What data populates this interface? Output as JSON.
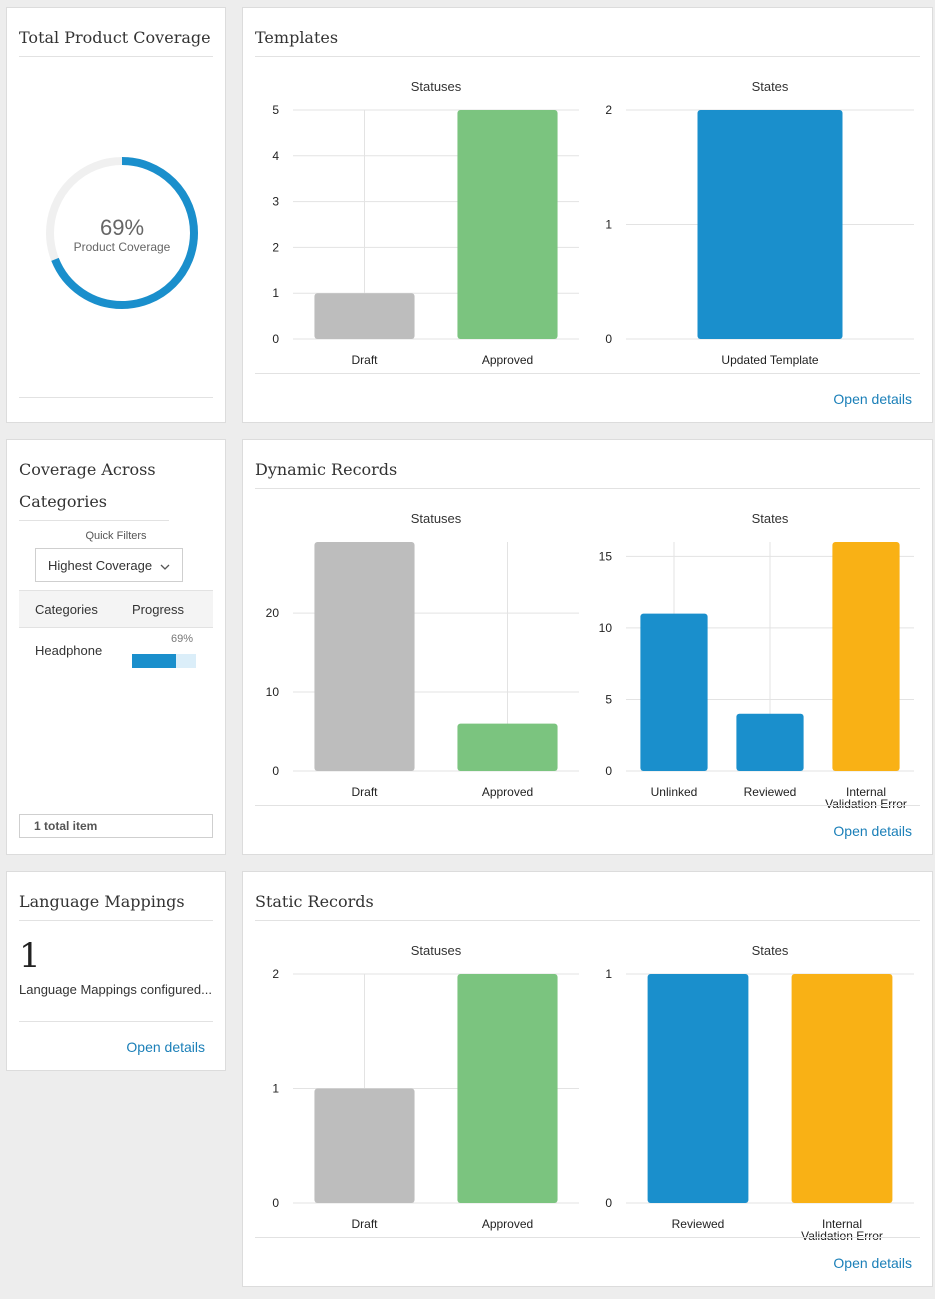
{
  "coverage": {
    "title": "Total Product Coverage",
    "percent": 69,
    "percent_label": "69%",
    "caption": "Product Coverage",
    "ring_color": "#1a8fcc"
  },
  "categories": {
    "title": "Coverage Across Categories",
    "quick_filters_label": "Quick Filters",
    "filter_value": "Highest Coverage",
    "columns": [
      "Categories",
      "Progress"
    ],
    "rows": [
      {
        "name": "Headphone",
        "progress": 69,
        "progress_label": "69%"
      }
    ],
    "total_label": "1 total item"
  },
  "language": {
    "title": "Language Mappings",
    "count": "1",
    "description": "Language Mappings configured...",
    "link": "Open details"
  },
  "templates": {
    "title": "Templates",
    "link": "Open details"
  },
  "dynamic": {
    "title": "Dynamic Records",
    "link": "Open details"
  },
  "static": {
    "title": "Static Records",
    "link": "Open details"
  },
  "colors": {
    "draft": "#bdbdbd",
    "approved": "#7bc47f",
    "blue": "#1a8fcc",
    "yellow": "#f9b115"
  },
  "chart_data": [
    {
      "id": "templates-statuses",
      "type": "bar",
      "title": "Statuses",
      "categories": [
        "Draft",
        "Approved"
      ],
      "values": [
        1,
        5
      ],
      "colors": [
        "#bdbdbd",
        "#7bc47f"
      ],
      "ylim": [
        0,
        5
      ],
      "yticks": [
        0,
        1,
        2,
        3,
        4,
        5
      ]
    },
    {
      "id": "templates-states",
      "type": "bar",
      "title": "States",
      "categories": [
        "Updated Template"
      ],
      "values": [
        2
      ],
      "colors": [
        "#1a8fcc"
      ],
      "ylim": [
        0,
        2
      ],
      "yticks": [
        0,
        1,
        2
      ]
    },
    {
      "id": "dynamic-statuses",
      "type": "bar",
      "title": "Statuses",
      "categories": [
        "Draft",
        "Approved"
      ],
      "values": [
        29,
        6
      ],
      "colors": [
        "#bdbdbd",
        "#7bc47f"
      ],
      "ylim": [
        0,
        29
      ],
      "yticks": [
        0,
        10,
        20
      ]
    },
    {
      "id": "dynamic-states",
      "type": "bar",
      "title": "States",
      "categories": [
        "Unlinked",
        "Reviewed",
        "Internal\nValidation Error"
      ],
      "values": [
        11,
        4,
        16
      ],
      "colors": [
        "#1a8fcc",
        "#1a8fcc",
        "#f9b115"
      ],
      "ylim": [
        0,
        16
      ],
      "yticks": [
        0,
        5,
        10,
        15
      ]
    },
    {
      "id": "static-statuses",
      "type": "bar",
      "title": "Statuses",
      "categories": [
        "Draft",
        "Approved"
      ],
      "values": [
        1,
        2
      ],
      "colors": [
        "#bdbdbd",
        "#7bc47f"
      ],
      "ylim": [
        0,
        2
      ],
      "yticks": [
        0,
        1,
        2
      ]
    },
    {
      "id": "static-states",
      "type": "bar",
      "title": "States",
      "categories": [
        "Reviewed",
        "Internal\nValidation Error"
      ],
      "values": [
        1,
        1
      ],
      "colors": [
        "#1a8fcc",
        "#f9b115"
      ],
      "ylim": [
        0,
        1
      ],
      "yticks": [
        0,
        1
      ]
    }
  ]
}
